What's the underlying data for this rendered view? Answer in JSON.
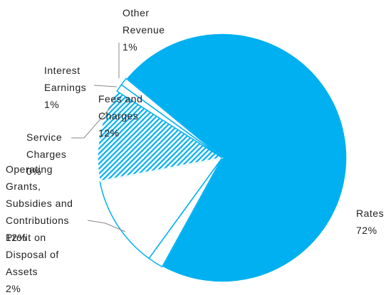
{
  "chart_data": {
    "type": "pie",
    "categories": [
      "Rates",
      "Profit on Disposal of Assets",
      "Operating Grants, Subsidies and Contributions",
      "Service Charges",
      "Fees and Charges",
      "Interest Earnings",
      "Other Revenue"
    ],
    "values": [
      72,
      2,
      12,
      0,
      12,
      1,
      1
    ],
    "value_labels": [
      "72%",
      "2%",
      "12%",
      "0%",
      "12%",
      "1%",
      "1%"
    ],
    "colors": [
      "#00b0f0",
      "#ffffff",
      "#ffffff",
      "#ffffff",
      "#00b0f0",
      "#ffffff",
      "#ffffff"
    ],
    "patterns": [
      "solid",
      "solid",
      "solid",
      "solid",
      "hatch",
      "solid",
      "solid"
    ]
  }
}
